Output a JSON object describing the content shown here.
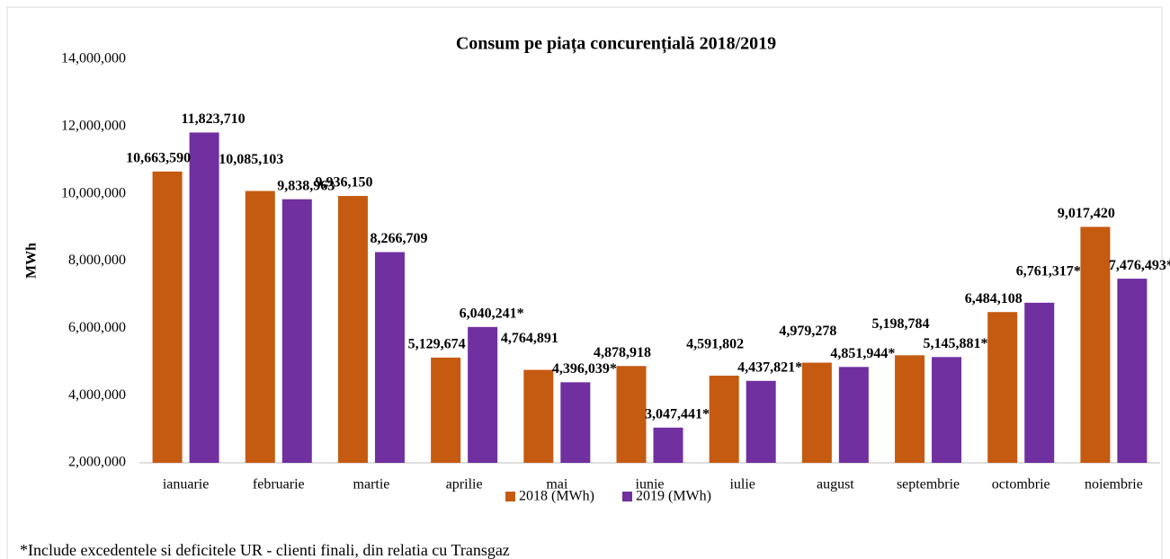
{
  "chart_data": {
    "type": "bar",
    "title": "Consum pe piața concurențială 2018/2019",
    "y_label": "MWh",
    "categories": [
      "ianuarie",
      "februarie",
      "martie",
      "aprilie",
      "mai",
      "iunie",
      "iulie",
      "august",
      "septembrie",
      "octombrie",
      "noiembrie"
    ],
    "series": [
      {
        "name": "2018 (MWh)",
        "color": "#c55a11",
        "values": [
          10663590,
          10085103,
          9936150,
          5129674,
          4764891,
          4878918,
          4591802,
          4979278,
          5198784,
          6484108,
          9017420
        ],
        "value_labels": [
          "10,663,590",
          "10,085,103",
          "9,936,150",
          "5,129,674",
          "4,764,891",
          "4,878,918",
          "4,591,802",
          "4,979,278",
          "5,198,784",
          "6,484,108",
          "9,017,420"
        ]
      },
      {
        "name": "2019 (MWh)",
        "color": "#7030a0",
        "values": [
          11823710,
          9838963,
          8266709,
          6040241,
          4396039,
          3047441,
          4437821,
          4851944,
          5145881,
          6761317,
          7476493
        ],
        "value_labels": [
          "11,823,710",
          "9,838,963",
          "8,266,709",
          "6,040,241*",
          "4,396,039*",
          "3,047,441*",
          "4,437,821*",
          "4,851,944*",
          "5,145,881*",
          "6,761,317*",
          "7,476,493*"
        ]
      }
    ],
    "ylim": [
      2000000,
      14000000
    ],
    "yticks": [
      {
        "value": 2000000,
        "label": "2,000,000"
      },
      {
        "value": 4000000,
        "label": "4,000,000"
      },
      {
        "value": 6000000,
        "label": "6,000,000"
      },
      {
        "value": 8000000,
        "label": "8,000,000"
      },
      {
        "value": 10000000,
        "label": "10,000,000"
      },
      {
        "value": 12000000,
        "label": "12,000,000"
      },
      {
        "value": 14000000,
        "label": "14,000,000"
      }
    ],
    "grid": false,
    "legend": "bottom",
    "footnote": "*Include excedentele si deficitele UR - clienti finali, din relatia cu Transgaz"
  }
}
